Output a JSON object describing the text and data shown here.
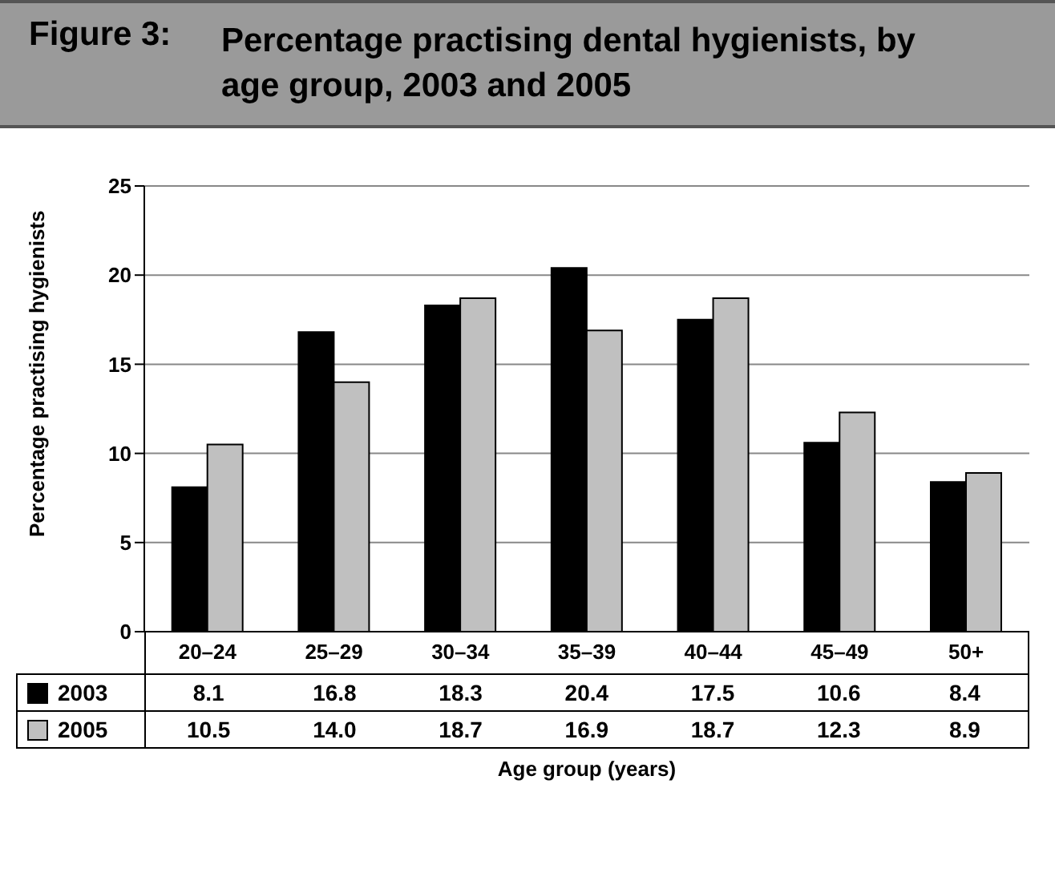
{
  "chart_data": {
    "type": "bar",
    "title": "Figure 3:   Percentage practising dental hygienists, by age group, 2003 and 2005",
    "xlabel": "Age group (years)",
    "ylabel": "Percentage practising hygienists",
    "categories": [
      "20–24",
      "25–29",
      "30–34",
      "35–39",
      "40–44",
      "45–49",
      "50+"
    ],
    "series": [
      {
        "name": "2003",
        "color": "#000000",
        "values": [
          8.1,
          16.8,
          18.3,
          20.4,
          17.5,
          10.6,
          8.4
        ],
        "value_labels": [
          "8.1",
          "16.8",
          "18.3",
          "20.4",
          "17.5",
          "10.6",
          "8.4"
        ]
      },
      {
        "name": "2005",
        "color": "#c0c0c0",
        "values": [
          10.5,
          14.0,
          18.7,
          16.9,
          18.7,
          12.3,
          8.9
        ],
        "value_labels": [
          "10.5",
          "14.0",
          "18.7",
          "16.9",
          "18.7",
          "12.3",
          "8.9"
        ]
      }
    ],
    "ylim": [
      0,
      25
    ],
    "yticks": [
      0,
      5,
      10,
      15,
      20,
      25
    ],
    "grid": "y",
    "legend": "bottom left"
  }
}
